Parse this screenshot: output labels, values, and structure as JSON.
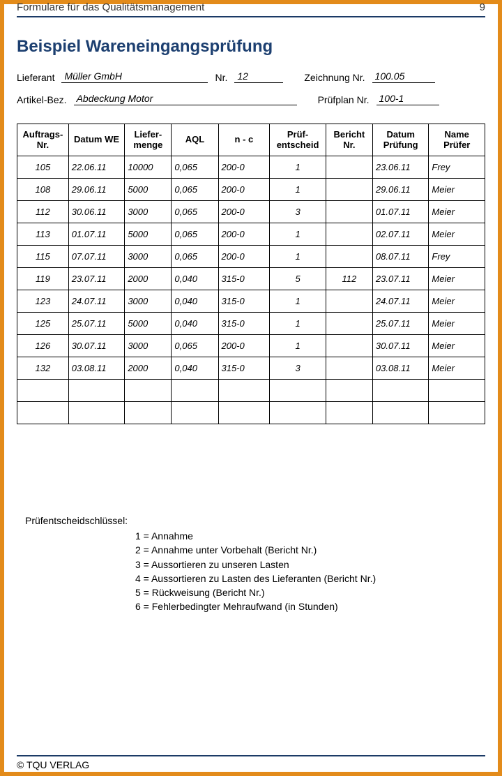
{
  "header": {
    "text": "Formulare für das Qualitätsmanagement",
    "page_number": "9"
  },
  "title": "Beispiel Wareneingangsprüfung",
  "form": {
    "lieferant_label": "Lieferant",
    "lieferant_value": "Müller GmbH",
    "nr_label": "Nr.",
    "nr_value": "12",
    "zeichnung_label": "Zeichnung Nr.",
    "zeichnung_value": "100.05",
    "artikel_label": "Artikel-Bez.",
    "artikel_value": "Abdeckung Motor",
    "pruefplan_label": "Prüfplan Nr.",
    "pruefplan_value": "100-1"
  },
  "table": {
    "columns": [
      "Auftrags-\nNr.",
      "Datum WE",
      "Liefer-\nmenge",
      "AQL",
      "n - c",
      "Prüf-\nentscheid",
      "Bericht Nr.",
      "Datum Prüfung",
      "Name Prüfer"
    ],
    "col_widths_pct": [
      11,
      12,
      10,
      10,
      11,
      12,
      10,
      12,
      12
    ],
    "center_cols": [
      0,
      5,
      6
    ],
    "rows": [
      [
        "105",
        "22.06.11",
        "10000",
        "0,065",
        "200-0",
        "1",
        "",
        "23.06.11",
        "Frey"
      ],
      [
        "108",
        "29.06.11",
        "5000",
        "0,065",
        "200-0",
        "1",
        "",
        "29.06.11",
        "Meier"
      ],
      [
        "112",
        "30.06.11",
        "3000",
        "0,065",
        "200-0",
        "3",
        "",
        "01.07.11",
        "Meier"
      ],
      [
        "113",
        "01.07.11",
        "5000",
        "0,065",
        "200-0",
        "1",
        "",
        "02.07.11",
        "Meier"
      ],
      [
        "115",
        "07.07.11",
        "3000",
        "0,065",
        "200-0",
        "1",
        "",
        "08.07.11",
        "Frey"
      ],
      [
        "119",
        "23.07.11",
        "2000",
        "0,040",
        "315-0",
        "5",
        "112",
        "23.07.11",
        "Meier"
      ],
      [
        "123",
        "24.07.11",
        "3000",
        "0,040",
        "315-0",
        "1",
        "",
        "24.07.11",
        "Meier"
      ],
      [
        "125",
        "25.07.11",
        "5000",
        "0,040",
        "315-0",
        "1",
        "",
        "25.07.11",
        "Meier"
      ],
      [
        "126",
        "30.07.11",
        "3000",
        "0,065",
        "200-0",
        "1",
        "",
        "30.07.11",
        "Meier"
      ],
      [
        "132",
        "03.08.11",
        "2000",
        "0,040",
        "315-0",
        "3",
        "",
        "03.08.11",
        "Meier"
      ]
    ],
    "empty_rows": 2
  },
  "legend": {
    "title": "Prüfentscheidschlüssel:",
    "items": [
      "1 = Annahme",
      "2 = Annahme unter Vorbehalt (Bericht Nr.)",
      "3 = Aussortieren zu unseren Lasten",
      "4 = Aussortieren zu Lasten des Lieferanten (Bericht Nr.)",
      "5 = Rückweisung (Bericht Nr.)",
      "6 = Fehlerbedingter Mehraufwand (in Stunden)"
    ]
  },
  "footer": "© TQU VERLAG",
  "colors": {
    "border": "#e38b1a",
    "rule": "#1b3a66",
    "title": "#1c3f70"
  }
}
